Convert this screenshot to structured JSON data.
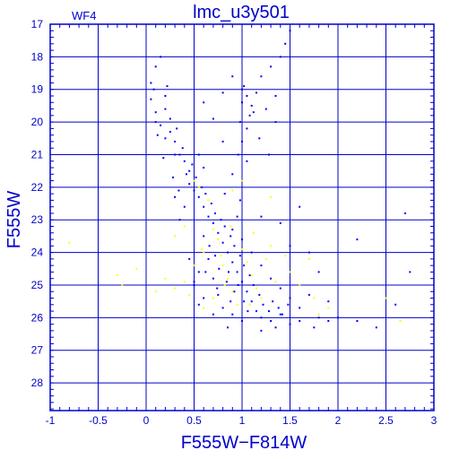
{
  "chart_data": {
    "type": "scatter",
    "title": "lmc_u3y501",
    "panel_label": "WF4",
    "xlabel": "F555W−F814W",
    "ylabel": "F555W",
    "xlim": [
      -1,
      3
    ],
    "ylim": [
      17,
      28.85
    ],
    "y_inverted": true,
    "grid": true,
    "x_ticks": [
      {
        "value": -1,
        "label": "-1"
      },
      {
        "value": -0.5,
        "label": "-0.5"
      },
      {
        "value": 0,
        "label": "0"
      },
      {
        "value": 0.5,
        "label": "0.5"
      },
      {
        "value": 1,
        "label": "1"
      },
      {
        "value": 1.5,
        "label": "1.5"
      },
      {
        "value": 2,
        "label": "2"
      },
      {
        "value": 2.5,
        "label": "2.5"
      },
      {
        "value": 3,
        "label": "3"
      }
    ],
    "y_ticks": [
      {
        "value": 17,
        "label": "17"
      },
      {
        "value": 18,
        "label": "18"
      },
      {
        "value": 19,
        "label": "19"
      },
      {
        "value": 20,
        "label": "20"
      },
      {
        "value": 21,
        "label": "21"
      },
      {
        "value": 22,
        "label": "22"
      },
      {
        "value": 23,
        "label": "23"
      },
      {
        "value": 24,
        "label": "24"
      },
      {
        "value": 25,
        "label": "25"
      },
      {
        "value": 26,
        "label": "26"
      },
      {
        "value": 27,
        "label": "27"
      },
      {
        "value": 28,
        "label": "28"
      }
    ],
    "colors": {
      "axis": "#0000cc",
      "grid": "#0000cc",
      "series_main": "#0000ff",
      "series_secondary": "#ffff00"
    },
    "series": [
      {
        "color": "#0000ff",
        "points": [
          [
            0.05,
            18.8
          ],
          [
            0.1,
            18.3
          ],
          [
            0.15,
            18.0
          ],
          [
            0.05,
            19.3
          ],
          [
            0.1,
            19.7
          ],
          [
            0.2,
            19.6
          ],
          [
            0.15,
            20.1
          ],
          [
            0.25,
            20.3
          ],
          [
            0.3,
            20.6
          ],
          [
            0.35,
            21.0
          ],
          [
            0.4,
            21.2
          ],
          [
            0.45,
            21.5
          ],
          [
            0.3,
            21.0
          ],
          [
            0.2,
            20.5
          ],
          [
            0.1,
            20.0
          ],
          [
            0.45,
            21.9
          ],
          [
            0.5,
            22.1
          ],
          [
            0.55,
            22.3
          ],
          [
            0.6,
            22.6
          ],
          [
            0.65,
            22.9
          ],
          [
            0.7,
            23.1
          ],
          [
            0.75,
            23.4
          ],
          [
            0.8,
            23.7
          ],
          [
            0.85,
            24.0
          ],
          [
            0.9,
            24.3
          ],
          [
            0.95,
            24.6
          ],
          [
            1.0,
            24.9
          ],
          [
            1.05,
            25.2
          ],
          [
            1.1,
            25.5
          ],
          [
            1.15,
            25.8
          ],
          [
            1.2,
            26.0
          ],
          [
            1.3,
            26.1
          ],
          [
            1.4,
            25.9
          ],
          [
            1.5,
            26.2
          ],
          [
            1.6,
            26.1
          ],
          [
            1.75,
            26.3
          ],
          [
            0.6,
            23.5
          ],
          [
            0.65,
            24.2
          ],
          [
            0.7,
            24.8
          ],
          [
            0.75,
            25.3
          ],
          [
            0.8,
            25.7
          ],
          [
            0.9,
            25.9
          ],
          [
            1.0,
            26.1
          ],
          [
            0.55,
            24.6
          ],
          [
            0.5,
            25.0
          ],
          [
            0.6,
            25.4
          ],
          [
            0.7,
            25.9
          ],
          [
            1.0,
            19.4
          ],
          [
            1.05,
            19.2
          ],
          [
            1.1,
            19.5
          ],
          [
            1.0,
            19.0
          ],
          [
            1.08,
            19.8
          ],
          [
            1.15,
            19.1
          ],
          [
            1.0,
            20.6
          ],
          [
            1.05,
            21.2
          ],
          [
            1.0,
            21.8
          ],
          [
            0.98,
            22.4
          ],
          [
            0.95,
            22.9
          ],
          [
            1.2,
            18.6
          ],
          [
            1.3,
            18.3
          ],
          [
            1.4,
            18.0
          ],
          [
            1.45,
            17.6
          ],
          [
            1.5,
            17.2
          ],
          [
            1.25,
            19.6
          ],
          [
            1.35,
            20.0
          ],
          [
            0.55,
            21.0
          ],
          [
            0.8,
            20.6
          ],
          [
            0.7,
            19.9
          ],
          [
            0.6,
            21.4
          ],
          [
            0.9,
            23.3
          ],
          [
            1.0,
            23.6
          ],
          [
            1.1,
            24.0
          ],
          [
            1.2,
            24.4
          ],
          [
            1.3,
            24.8
          ],
          [
            1.4,
            25.1
          ],
          [
            1.5,
            25.4
          ],
          [
            1.6,
            25.7
          ],
          [
            1.8,
            26.0
          ],
          [
            1.9,
            26.1
          ],
          [
            2.0,
            26.0
          ],
          [
            2.2,
            23.6
          ],
          [
            2.2,
            26.1
          ],
          [
            2.4,
            26.3
          ],
          [
            2.7,
            22.8
          ],
          [
            2.75,
            24.6
          ],
          [
            2.6,
            25.6
          ],
          [
            1.2,
            22.9
          ],
          [
            1.4,
            23.1
          ],
          [
            1.5,
            23.8
          ],
          [
            1.7,
            24.0
          ],
          [
            1.9,
            25.5
          ],
          [
            1.7,
            25.3
          ],
          [
            0.4,
            22.6
          ],
          [
            0.35,
            23.0
          ],
          [
            0.45,
            24.2
          ],
          [
            0.5,
            24.9
          ],
          [
            0.55,
            25.6
          ],
          [
            0.85,
            26.3
          ],
          [
            1.2,
            26.4
          ],
          [
            1.35,
            26.3
          ],
          [
            0.2,
            19.2
          ],
          [
            0.25,
            19.9
          ],
          [
            0.32,
            20.2
          ],
          [
            0.38,
            20.8
          ],
          [
            0.42,
            21.6
          ],
          [
            0.48,
            21.3
          ],
          [
            0.52,
            21.7
          ],
          [
            0.58,
            22.0
          ],
          [
            0.62,
            22.2
          ],
          [
            0.68,
            22.5
          ],
          [
            0.72,
            22.8
          ],
          [
            0.78,
            23.0
          ],
          [
            0.82,
            23.2
          ],
          [
            0.88,
            23.5
          ],
          [
            0.92,
            23.8
          ],
          [
            0.98,
            24.1
          ],
          [
            1.02,
            24.4
          ],
          [
            1.08,
            24.7
          ],
          [
            1.12,
            25.0
          ],
          [
            1.18,
            25.3
          ],
          [
            1.22,
            25.6
          ],
          [
            1.28,
            25.8
          ],
          [
            1.32,
            25.5
          ],
          [
            1.38,
            25.7
          ],
          [
            1.42,
            25.9
          ],
          [
            1.48,
            25.6
          ],
          [
            0.76,
            24.5
          ],
          [
            0.84,
            24.9
          ],
          [
            0.92,
            25.2
          ],
          [
            1.02,
            25.5
          ],
          [
            0.66,
            23.8
          ],
          [
            0.72,
            24.1
          ],
          [
            0.86,
            24.6
          ],
          [
            0.96,
            25.0
          ],
          [
            1.06,
            25.8
          ],
          [
            0.62,
            24.6
          ],
          [
            0.74,
            25.1
          ],
          [
            0.88,
            25.5
          ],
          [
            0.82,
            22.2
          ],
          [
            0.9,
            21.6
          ],
          [
            0.96,
            21.0
          ],
          [
            1.05,
            20.2
          ],
          [
            0.98,
            20.0
          ],
          [
            1.12,
            19.7
          ],
          [
            1.02,
            18.9
          ],
          [
            1.18,
            20.5
          ],
          [
            1.28,
            21.0
          ],
          [
            0.12,
            20.4
          ],
          [
            0.18,
            21.1
          ],
          [
            0.28,
            21.7
          ],
          [
            0.34,
            22.1
          ],
          [
            0.3,
            22.3
          ],
          [
            0.22,
            18.9
          ],
          [
            0.08,
            19.0
          ],
          [
            0.6,
            19.4
          ],
          [
            0.8,
            19.1
          ],
          [
            0.9,
            18.6
          ],
          [
            1.35,
            19.2
          ],
          [
            1.6,
            22.6
          ],
          [
            1.8,
            24.6
          ]
        ]
      },
      {
        "color": "#ffff00",
        "points": [
          [
            -0.8,
            23.7
          ],
          [
            -0.3,
            24.7
          ],
          [
            -0.25,
            25.0
          ],
          [
            -0.1,
            24.5
          ],
          [
            0.1,
            25.2
          ],
          [
            0.2,
            24.8
          ],
          [
            0.3,
            25.1
          ],
          [
            0.4,
            24.9
          ],
          [
            0.45,
            25.3
          ],
          [
            0.5,
            24.4
          ],
          [
            0.6,
            24.0
          ],
          [
            0.7,
            23.3
          ],
          [
            0.75,
            23.6
          ],
          [
            0.8,
            24.4
          ],
          [
            0.85,
            24.8
          ],
          [
            0.9,
            25.2
          ],
          [
            0.95,
            25.6
          ],
          [
            1.0,
            23.9
          ],
          [
            1.05,
            24.3
          ],
          [
            1.1,
            24.7
          ],
          [
            1.15,
            25.1
          ],
          [
            1.2,
            25.4
          ],
          [
            1.25,
            24.2
          ],
          [
            1.3,
            23.8
          ],
          [
            1.35,
            24.9
          ],
          [
            1.5,
            24.6
          ],
          [
            1.6,
            25.0
          ],
          [
            1.7,
            24.2
          ],
          [
            1.75,
            25.4
          ],
          [
            1.8,
            25.9
          ],
          [
            1.9,
            25.7
          ],
          [
            2.5,
            25.4
          ],
          [
            2.65,
            26.1
          ],
          [
            0.55,
            22.0
          ],
          [
            0.65,
            22.4
          ],
          [
            0.9,
            22.1
          ],
          [
            1.0,
            21.8
          ],
          [
            0.4,
            23.2
          ],
          [
            0.3,
            23.5
          ],
          [
            0.6,
            25.7
          ],
          [
            0.7,
            25.4
          ],
          [
            0.78,
            24.1
          ],
          [
            0.88,
            23.2
          ],
          [
            1.12,
            23.4
          ],
          [
            1.45,
            24.1
          ],
          [
            0.58,
            23.9
          ],
          [
            0.82,
            25.0
          ],
          [
            1.08,
            25.6
          ],
          [
            1.3,
            22.3
          ],
          [
            0.5,
            21.8
          ]
        ]
      }
    ]
  }
}
